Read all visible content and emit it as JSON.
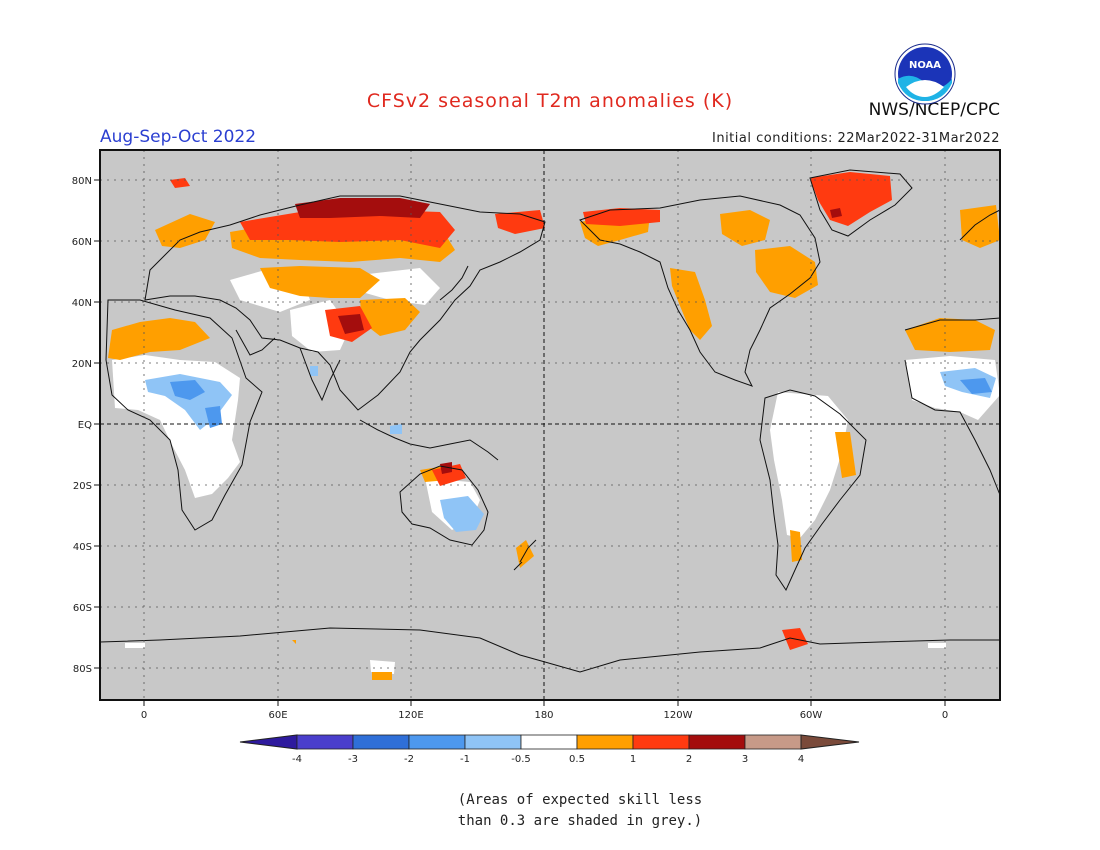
{
  "header": {
    "title": "CFSv2 seasonal T2m anomalies (K)",
    "season": "Aug-Sep-Oct 2022",
    "initial_conditions": "Initial conditions: 22Mar2022-31Mar2022",
    "organization": "NWS/NCEP/CPC",
    "logo_text": "NOAA"
  },
  "map": {
    "projection": "cylindrical equidistant, centered on 180",
    "lat_labels": [
      "80N",
      "60N",
      "40N",
      "20N",
      "EQ",
      "20S",
      "40S",
      "60S",
      "80S"
    ],
    "lon_labels": [
      "0",
      "60E",
      "120E",
      "180",
      "120W",
      "60W",
      "0"
    ],
    "background_color": "#c8c8c8"
  },
  "colorbar": {
    "tick_labels": [
      "-4",
      "-3",
      "-2",
      "-1",
      "-0.5",
      "0.5",
      "1",
      "2",
      "3",
      "4"
    ],
    "colors": [
      "#2e1a9e",
      "#4a3ecc",
      "#2f6fd8",
      "#4d98ee",
      "#8fc4f6",
      "#ffffff",
      "#ff9f00",
      "#ff3a10",
      "#a40d0d",
      "#c79a88",
      "#7a4a3a"
    ]
  },
  "note": {
    "line1": "(Areas of expected skill less",
    "line2": "than 0.3 are shaded in grey.)"
  },
  "colors": {
    "title": "#e0291f",
    "season": "#2b3fd1",
    "grey": "#c8c8c8",
    "white": "#ffffff",
    "light_orange": "#ff9f00",
    "orange_red": "#ff3a10",
    "dark_red": "#a40d0d",
    "light_blue": "#8fc4f6",
    "blue": "#4d98ee"
  }
}
